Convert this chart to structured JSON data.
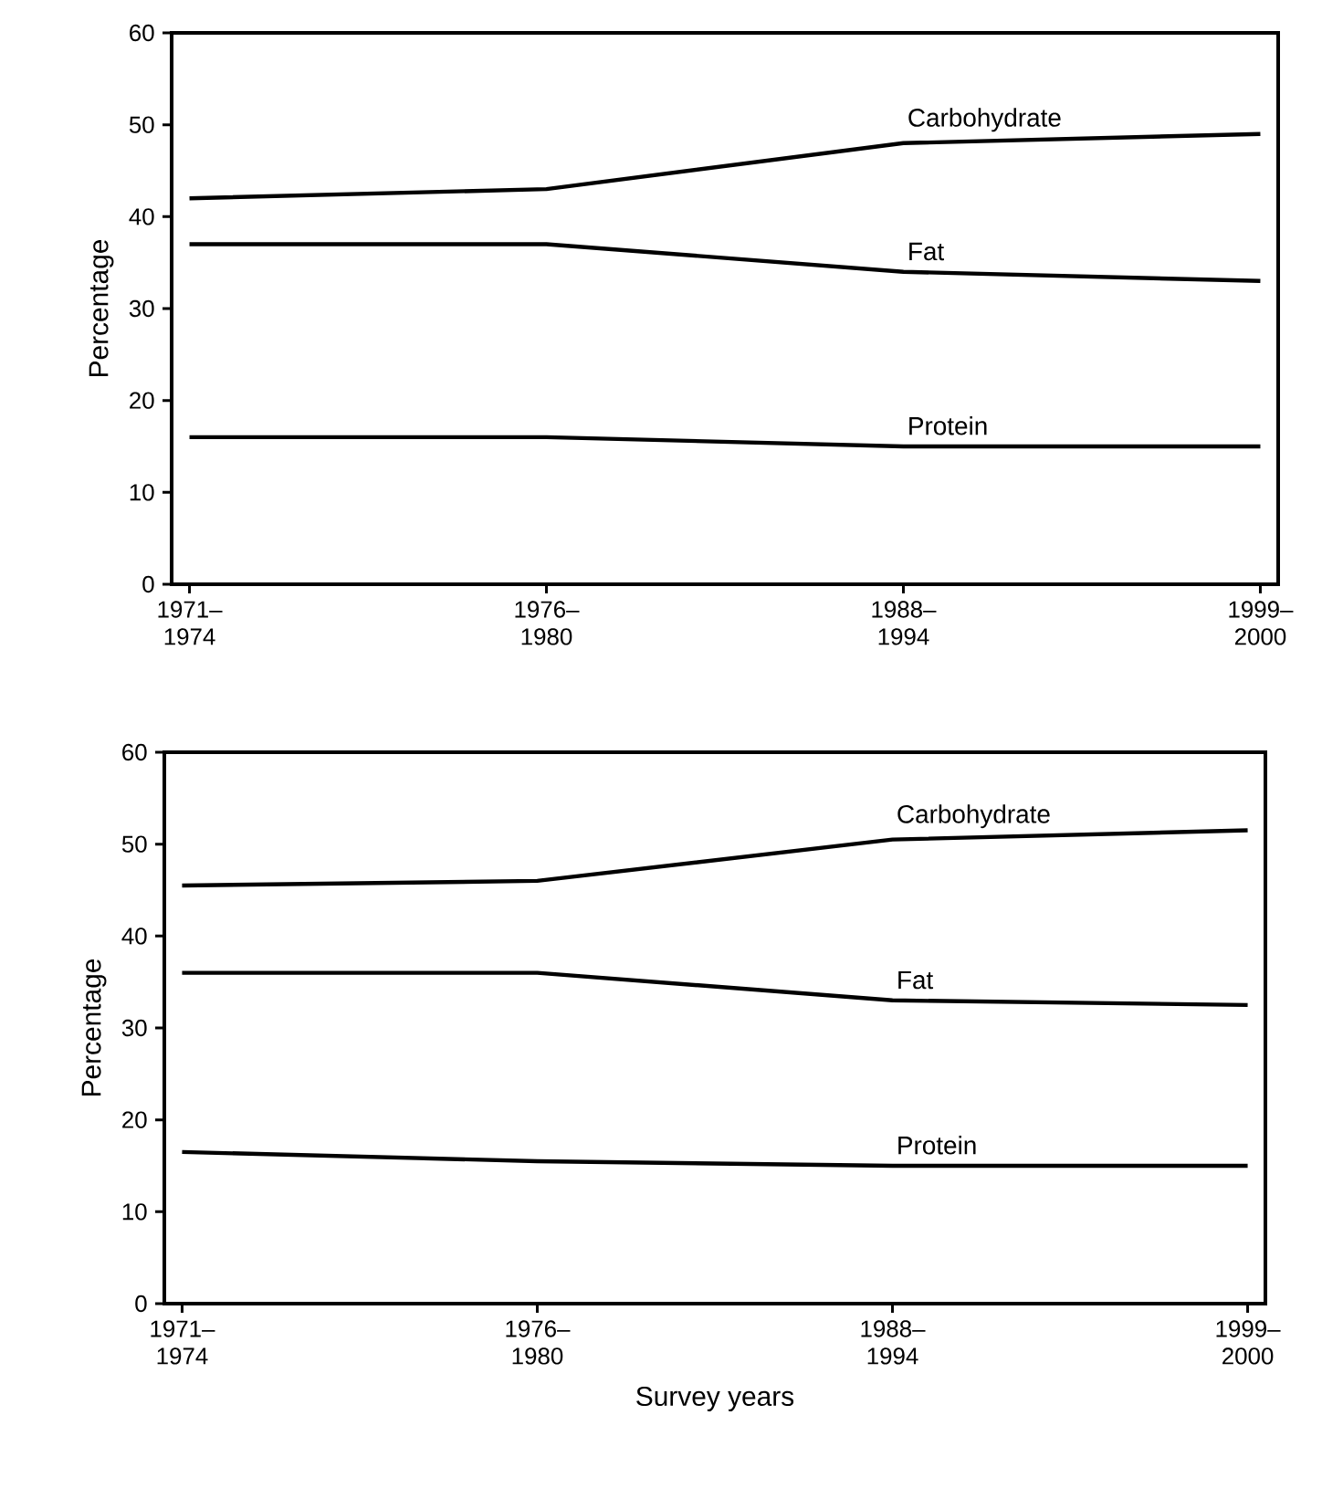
{
  "chart_data": [
    {
      "type": "line",
      "ylabel": "Percentage",
      "categories": [
        "1971–1974",
        "1976–1980",
        "1988–1994",
        "1999–2000"
      ],
      "ylim": [
        0,
        60
      ],
      "yticks": [
        0,
        10,
        20,
        30,
        40,
        50,
        60
      ],
      "grid": false,
      "legend": false,
      "marker": "none",
      "line_style": "solid",
      "series": [
        {
          "name": "Carbohydrate",
          "color": "#000000",
          "values": [
            42,
            43,
            48,
            49
          ]
        },
        {
          "name": "Fat",
          "color": "#000000",
          "values": [
            37,
            37,
            34,
            33
          ]
        },
        {
          "name": "Protein",
          "color": "#000000",
          "values": [
            16,
            16,
            15,
            15
          ]
        }
      ]
    },
    {
      "type": "line",
      "xlabel": "Survey years",
      "ylabel": "Percentage",
      "categories": [
        "1971–1974",
        "1976–1980",
        "1988–1994",
        "1999–2000"
      ],
      "ylim": [
        0,
        60
      ],
      "yticks": [
        0,
        10,
        20,
        30,
        40,
        50,
        60
      ],
      "grid": false,
      "legend": false,
      "marker": "none",
      "line_style": "solid",
      "series": [
        {
          "name": "Carbohydrate",
          "color": "#000000",
          "values": [
            45.5,
            46,
            50.5,
            51.5
          ]
        },
        {
          "name": "Fat",
          "color": "#000000",
          "values": [
            36,
            36,
            33,
            32.5
          ]
        },
        {
          "name": "Protein",
          "color": "#000000",
          "values": [
            16.5,
            15.5,
            15,
            15
          ]
        }
      ]
    }
  ]
}
